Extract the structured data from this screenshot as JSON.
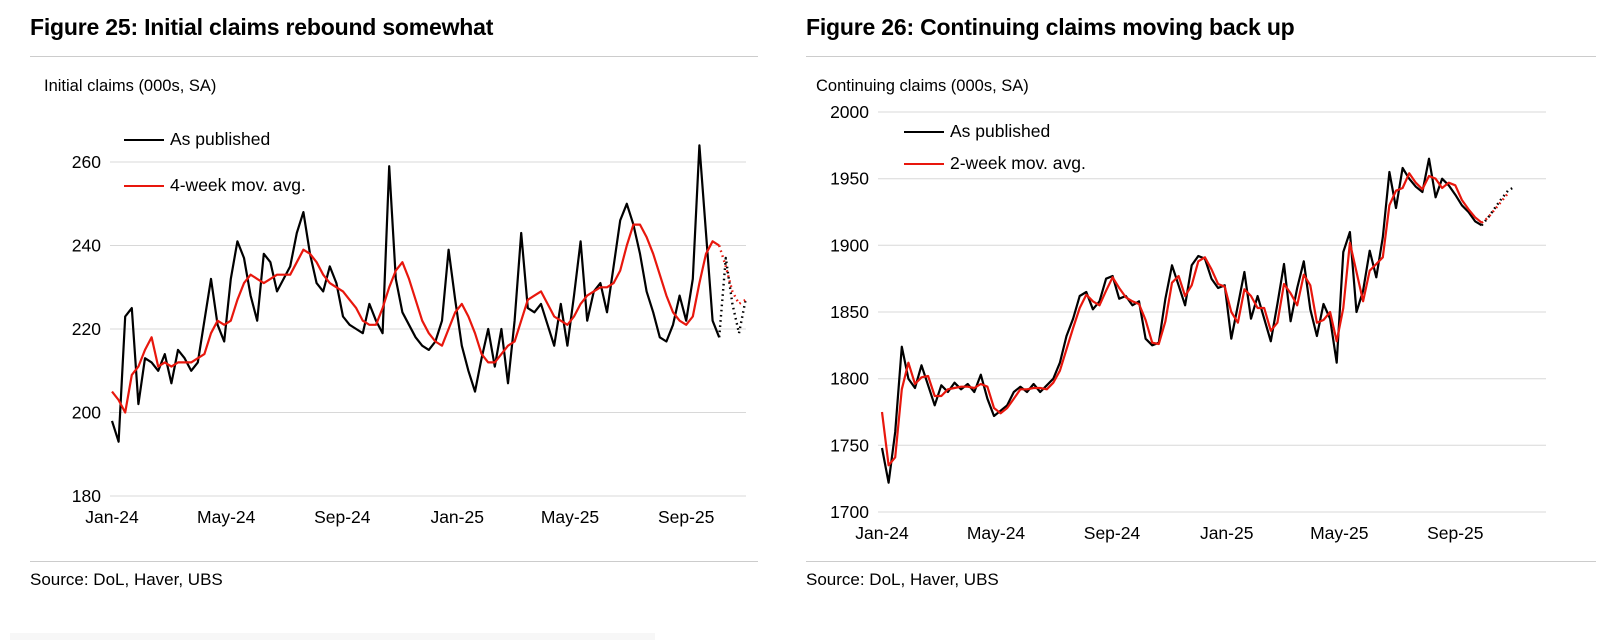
{
  "colors": {
    "black": "#000000",
    "red": "#e8170d",
    "grid": "#d8d8d8",
    "rule": "#cccccc"
  },
  "chart_data": [
    {
      "type": "line",
      "figure_title": "Figure 25: Initial claims rebound somewhat",
      "axis_label": "Initial claims (000s, SA)",
      "source": "Source: DoL, Haver, UBS",
      "unit": "thousands, seasonally adjusted, weekly",
      "ylim": [
        180,
        260
      ],
      "yticks": [
        180,
        200,
        220,
        240,
        260
      ],
      "x_tick_labels": [
        "Jan-24",
        "May-24",
        "Sep-24",
        "Jan-25",
        "May-25",
        "Sep-25"
      ],
      "x_tick_weeks": [
        0,
        17.3,
        34.9,
        52.3,
        69.4,
        87
      ],
      "grid": true,
      "legend_position": "top-left",
      "legend": [
        {
          "label": "As published",
          "color": "#000000"
        },
        {
          "label": "4-week mov. avg.",
          "color": "#e8170d"
        }
      ],
      "series": [
        {
          "name": "As published",
          "color": "#000000",
          "dash": "solid",
          "start_week": 0,
          "values": [
            198,
            193,
            223,
            225,
            202,
            213,
            212,
            210,
            214,
            207,
            215,
            213,
            210,
            212,
            222,
            232,
            221,
            217,
            232,
            241,
            237,
            228,
            222,
            238,
            236,
            229,
            232,
            235,
            243,
            248,
            238,
            231,
            229,
            235,
            231,
            223,
            221,
            220,
            219,
            226,
            222,
            219,
            259,
            232,
            224,
            221,
            218,
            216,
            215,
            217,
            222,
            239,
            227,
            216,
            210,
            205,
            213,
            220,
            211,
            220,
            207,
            222,
            243,
            225,
            224,
            226,
            221,
            216,
            226,
            216,
            228,
            241,
            222,
            229,
            231,
            224,
            235,
            246,
            250,
            245,
            238,
            229,
            224,
            218,
            217,
            221,
            228,
            222,
            232,
            264,
            243,
            222,
            218
          ]
        },
        {
          "name": "As published (projection)",
          "color": "#000000",
          "dash": "dotted",
          "start_week": 92,
          "values": [
            218,
            237,
            226,
            219,
            227
          ]
        },
        {
          "name": "4-week mov. avg.",
          "color": "#e8170d",
          "dash": "solid",
          "start_week": 0,
          "values": [
            205,
            203,
            200,
            209,
            211,
            215,
            218,
            211,
            212,
            211,
            212,
            212,
            212,
            213,
            214,
            219,
            222,
            221,
            222,
            227,
            231,
            233,
            232,
            231,
            232,
            233,
            233,
            233,
            236,
            239,
            238,
            236,
            233,
            231,
            230,
            229,
            227,
            225,
            222,
            221,
            221,
            225,
            230,
            234,
            236,
            232,
            227,
            222,
            219,
            217,
            216,
            220,
            224,
            226,
            223,
            219,
            214,
            212,
            212,
            214,
            216,
            217,
            222,
            227,
            228,
            229,
            226,
            223,
            222,
            221,
            223,
            226,
            228,
            229,
            230,
            230,
            231,
            234,
            240,
            245,
            245,
            242,
            238,
            233,
            228,
            224,
            222,
            221,
            223,
            231,
            238,
            241,
            240
          ]
        },
        {
          "name": "4-week mov. avg. (projection)",
          "color": "#e8170d",
          "dash": "dotted",
          "start_week": 92,
          "values": [
            240,
            235,
            229,
            226,
            227
          ]
        }
      ]
    },
    {
      "type": "line",
      "figure_title": "Figure 26: Continuing claims moving back up",
      "axis_label": "Continuing claims (000s, SA)",
      "source": "Source: DoL, Haver, UBS",
      "unit": "thousands, seasonally adjusted, weekly",
      "ylim": [
        1700,
        2000
      ],
      "yticks": [
        1700,
        1750,
        1800,
        1850,
        1900,
        1950,
        2000
      ],
      "x_tick_labels": [
        "Jan-24",
        "May-24",
        "Sep-24",
        "Jan-25",
        "May-25",
        "Sep-25"
      ],
      "x_tick_weeks": [
        0,
        17.3,
        34.9,
        52.3,
        69.4,
        87
      ],
      "grid": true,
      "legend_position": "top-left",
      "legend": [
        {
          "label": "As published",
          "color": "#000000"
        },
        {
          "label": "2-week mov. avg.",
          "color": "#e8170d"
        }
      ],
      "series": [
        {
          "name": "As published",
          "color": "#000000",
          "dash": "solid",
          "start_week": 0,
          "values": [
            1748,
            1722,
            1760,
            1824,
            1800,
            1793,
            1810,
            1795,
            1780,
            1795,
            1790,
            1797,
            1792,
            1796,
            1790,
            1803,
            1785,
            1772,
            1776,
            1780,
            1790,
            1794,
            1790,
            1796,
            1790,
            1795,
            1800,
            1812,
            1832,
            1845,
            1862,
            1865,
            1852,
            1858,
            1875,
            1877,
            1860,
            1862,
            1855,
            1858,
            1830,
            1825,
            1827,
            1860,
            1885,
            1870,
            1855,
            1885,
            1892,
            1890,
            1875,
            1868,
            1870,
            1830,
            1855,
            1880,
            1845,
            1862,
            1845,
            1828,
            1856,
            1886,
            1843,
            1868,
            1888,
            1852,
            1832,
            1856,
            1845,
            1812,
            1895,
            1910,
            1850,
            1866,
            1896,
            1876,
            1906,
            1955,
            1928,
            1958,
            1950,
            1944,
            1940,
            1965,
            1936,
            1950,
            1945,
            1938,
            1930,
            1925,
            1918,
            1915
          ]
        },
        {
          "name": "As published (projection)",
          "color": "#000000",
          "dash": "dotted",
          "start_week": 91,
          "values": [
            1915,
            1921,
            1928,
            1935,
            1941,
            1944
          ]
        },
        {
          "name": "2-week mov. avg.",
          "color": "#e8170d",
          "dash": "solid",
          "start_week": 0,
          "values": [
            1775,
            1735,
            1741,
            1792,
            1812,
            1796,
            1801,
            1802,
            1787,
            1787,
            1792,
            1793,
            1794,
            1794,
            1793,
            1796,
            1794,
            1778,
            1774,
            1778,
            1785,
            1792,
            1792,
            1793,
            1793,
            1792,
            1797,
            1806,
            1822,
            1838,
            1853,
            1863,
            1858,
            1855,
            1866,
            1876,
            1868,
            1861,
            1858,
            1856,
            1844,
            1827,
            1826,
            1843,
            1872,
            1877,
            1862,
            1870,
            1888,
            1891,
            1882,
            1871,
            1869,
            1850,
            1842,
            1867,
            1862,
            1853,
            1853,
            1836,
            1842,
            1871,
            1864,
            1855,
            1878,
            1870,
            1842,
            1844,
            1850,
            1828,
            1853,
            1902,
            1880,
            1858,
            1881,
            1886,
            1891,
            1930,
            1941,
            1943,
            1954,
            1947,
            1942,
            1952,
            1950,
            1943,
            1947,
            1945,
            1934,
            1927,
            1921,
            1917
          ]
        },
        {
          "name": "2-week mov. avg. (projection)",
          "color": "#e8170d",
          "dash": "dotted",
          "start_week": 91,
          "values": [
            1917,
            1921,
            1927,
            1933,
            1939
          ]
        }
      ]
    }
  ]
}
